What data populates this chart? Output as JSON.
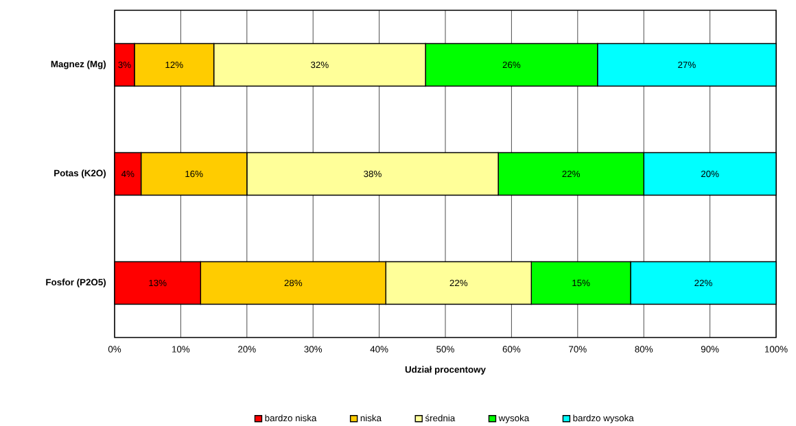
{
  "chart_data": {
    "type": "bar",
    "orientation": "horizontal",
    "stacked": true,
    "xlabel": "Udział procentowy",
    "categories": [
      "Magnez (Mg)",
      "Potas (K2O)",
      "Fosfor (P2O5)"
    ],
    "series": [
      {
        "name": "bardzo niska",
        "color": "#ff0000",
        "values": [
          3,
          4,
          13
        ],
        "value_labels": [
          "3%",
          "4%",
          "13%"
        ]
      },
      {
        "name": "niska",
        "color": "#ffcc00",
        "values": [
          12,
          16,
          28
        ],
        "value_labels": [
          "12%",
          "16%",
          "28%"
        ]
      },
      {
        "name": "średnia",
        "color": "#ffff99",
        "values": [
          32,
          38,
          22
        ],
        "value_labels": [
          "32%",
          "38%",
          "22%"
        ]
      },
      {
        "name": "wysoka",
        "color": "#00ff00",
        "values": [
          26,
          22,
          15
        ],
        "value_labels": [
          "26%",
          "22%",
          "15%"
        ]
      },
      {
        "name": "bardzo wysoka",
        "color": "#00ffff",
        "values": [
          27,
          20,
          22
        ],
        "value_labels": [
          "27%",
          "20%",
          "22%"
        ]
      }
    ],
    "xlim": [
      0,
      100
    ],
    "xticks": [
      {
        "value": 0,
        "label": "0%"
      },
      {
        "value": 10,
        "label": "10%"
      },
      {
        "value": 20,
        "label": "20%"
      },
      {
        "value": 30,
        "label": "30%"
      },
      {
        "value": 40,
        "label": "40%"
      },
      {
        "value": 50,
        "label": "50%"
      },
      {
        "value": 60,
        "label": "60%"
      },
      {
        "value": 70,
        "label": "70%"
      },
      {
        "value": 80,
        "label": "80%"
      },
      {
        "value": 90,
        "label": "90%"
      },
      {
        "value": 100,
        "label": "100%"
      }
    ],
    "grid": "x",
    "legend": "bottom"
  }
}
